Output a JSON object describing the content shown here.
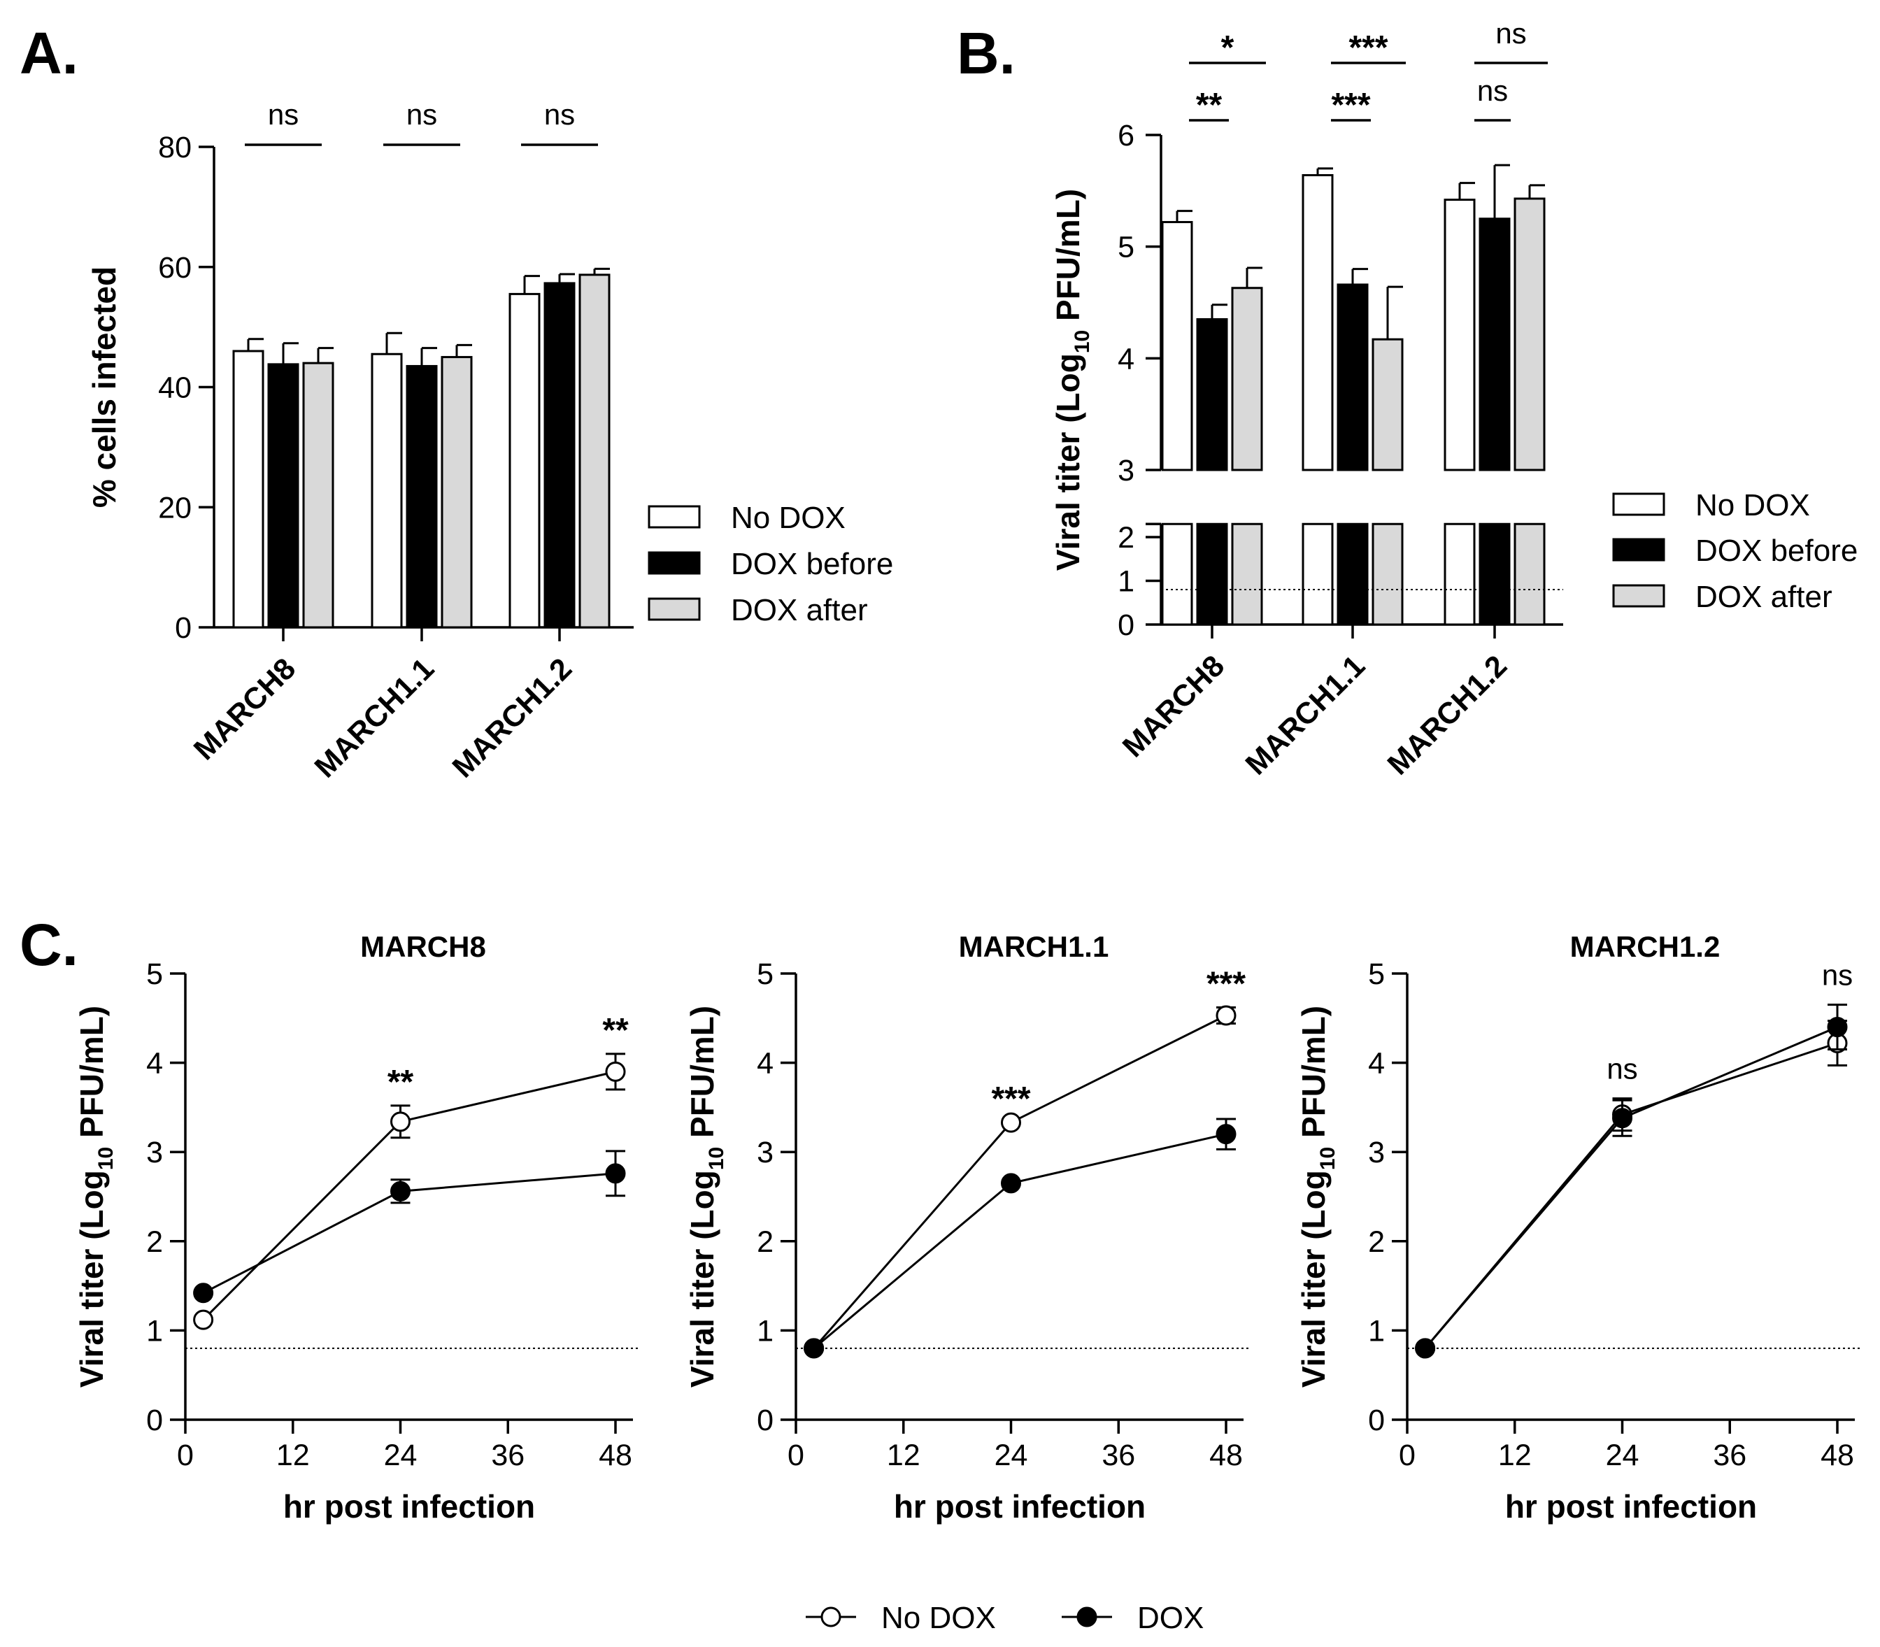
{
  "figure": {
    "panels": [
      {
        "id": "A",
        "letter": "A.",
        "chart_data": {
          "type": "bar",
          "categories": [
            "MARCH8",
            "MARCH1.1",
            "MARCH1.2"
          ],
          "series": [
            {
              "name": "No DOX",
              "values": [
                46,
                45.5,
                55.5
              ],
              "errors": [
                2,
                3.5,
                3
              ],
              "color": "#ffffff"
            },
            {
              "name": "DOX before",
              "values": [
                43.8,
                43.5,
                57.3
              ],
              "errors": [
                3.5,
                3,
                1.5
              ],
              "color": "#000000"
            },
            {
              "name": "DOX after",
              "values": [
                44,
                45,
                58.7
              ],
              "errors": [
                2.5,
                2,
                1
              ],
              "color": "#d9d9d9"
            }
          ],
          "ylabel": "% cells infected",
          "ylim": [
            0,
            80
          ],
          "yticks": [
            0,
            20,
            40,
            60,
            80
          ],
          "significance": [
            {
              "category": "MARCH8",
              "label": "ns"
            },
            {
              "category": "MARCH1.1",
              "label": "ns"
            },
            {
              "category": "MARCH1.2",
              "label": "ns"
            }
          ],
          "legend": "right"
        }
      },
      {
        "id": "B",
        "letter": "B.",
        "chart_data": {
          "type": "bar",
          "categories": [
            "MARCH8",
            "MARCH1.1",
            "MARCH1.2"
          ],
          "series": [
            {
              "name": "No DOX",
              "values": [
                5.22,
                5.64,
                5.42
              ],
              "errors": [
                0.1,
                0.06,
                0.15
              ],
              "color": "#ffffff"
            },
            {
              "name": "DOX before",
              "values": [
                4.35,
                4.66,
                5.25
              ],
              "errors": [
                0.13,
                0.14,
                0.48
              ],
              "color": "#000000"
            },
            {
              "name": "DOX after",
              "values": [
                4.63,
                4.17,
                5.43
              ],
              "errors": [
                0.18,
                0.47,
                0.12
              ],
              "color": "#d9d9d9"
            }
          ],
          "ylabel_main": "Viral titer (Log",
          "ylabel_sub": "10",
          "ylabel_end": " PFU/mL)",
          "ylim": [
            0,
            6
          ],
          "axis_break": [
            2.3,
            3
          ],
          "yticks": [
            0,
            1,
            2,
            3,
            4,
            5,
            6
          ],
          "detection_limit": 0.8,
          "significance": [
            {
              "category": "MARCH8",
              "comparison": "No DOX vs DOX before",
              "label": "**"
            },
            {
              "category": "MARCH8",
              "comparison": "No DOX vs DOX after",
              "label": "*"
            },
            {
              "category": "MARCH1.1",
              "comparison": "No DOX vs DOX before",
              "label": "***"
            },
            {
              "category": "MARCH1.1",
              "comparison": "No DOX vs DOX after",
              "label": "***"
            },
            {
              "category": "MARCH1.2",
              "comparison": "No DOX vs DOX before",
              "label": "ns"
            },
            {
              "category": "MARCH1.2",
              "comparison": "No DOX vs DOX after",
              "label": "ns"
            }
          ],
          "legend": "right"
        }
      },
      {
        "id": "C",
        "letter": "C.",
        "chart_data": [
          {
            "type": "line",
            "title": "MARCH8",
            "x": [
              2,
              24,
              48
            ],
            "series": [
              {
                "name": "No DOX",
                "values": [
                  1.12,
                  3.34,
                  3.9
                ],
                "errors": [
                  0,
                  0.18,
                  0.2
                ],
                "marker": "open-circle"
              },
              {
                "name": "DOX",
                "values": [
                  1.42,
                  2.56,
                  2.76
                ],
                "errors": [
                  0,
                  0.13,
                  0.25
                ],
                "marker": "filled-circle"
              }
            ],
            "xlabel": "hr post infection",
            "ylabel_main": "Viral titer (Log",
            "ylabel_sub": "10",
            "ylabel_end": " PFU/mL)",
            "xlim": [
              0,
              48
            ],
            "xticks": [
              0,
              12,
              24,
              36,
              48
            ],
            "ylim": [
              0,
              5
            ],
            "yticks": [
              0,
              1,
              2,
              3,
              4,
              5
            ],
            "detection_limit": 0.8,
            "significance": [
              {
                "x": 24,
                "label": "**"
              },
              {
                "x": 48,
                "label": "**"
              }
            ]
          },
          {
            "type": "line",
            "title": "MARCH1.1",
            "x": [
              2,
              24,
              48
            ],
            "series": [
              {
                "name": "No DOX",
                "values": [
                  0.8,
                  3.33,
                  4.53
                ],
                "errors": [
                  0,
                  0,
                  0.09
                ],
                "marker": "open-circle"
              },
              {
                "name": "DOX",
                "values": [
                  0.8,
                  2.65,
                  3.2
                ],
                "errors": [
                  0,
                  0,
                  0.17
                ],
                "marker": "filled-circle"
              }
            ],
            "xlabel": "hr post infection",
            "ylabel_main": "Viral titer (Log",
            "ylabel_sub": "10",
            "ylabel_end": " PFU/mL)",
            "xlim": [
              0,
              48
            ],
            "xticks": [
              0,
              12,
              24,
              36,
              48
            ],
            "ylim": [
              0,
              5
            ],
            "yticks": [
              0,
              1,
              2,
              3,
              4,
              5
            ],
            "detection_limit": 0.8,
            "significance": [
              {
                "x": 24,
                "label": "***"
              },
              {
                "x": 48,
                "label": "***"
              }
            ]
          },
          {
            "type": "line",
            "title": "MARCH1.2",
            "x": [
              2,
              24,
              48
            ],
            "series": [
              {
                "name": "No DOX",
                "values": [
                  0.8,
                  3.42,
                  4.22
                ],
                "errors": [
                  0,
                  0.18,
                  0.25
                ],
                "marker": "open-circle"
              },
              {
                "name": "DOX",
                "values": [
                  0.8,
                  3.38,
                  4.4
                ],
                "errors": [
                  0,
                  0.2,
                  0.25
                ],
                "marker": "filled-circle"
              }
            ],
            "xlabel": "hr post infection",
            "ylabel_main": "Viral titer (Log",
            "ylabel_sub": "10",
            "ylabel_end": " PFU/mL)",
            "xlim": [
              0,
              48
            ],
            "xticks": [
              0,
              12,
              24,
              36,
              48
            ],
            "ylim": [
              0,
              5
            ],
            "yticks": [
              0,
              1,
              2,
              3,
              4,
              5
            ],
            "detection_limit": 0.8,
            "significance": [
              {
                "x": 24,
                "label": "ns"
              },
              {
                "x": 48,
                "label": "ns"
              }
            ]
          }
        ],
        "legend": {
          "position": "bottom",
          "entries": [
            {
              "name": "No DOX",
              "marker": "open-circle"
            },
            {
              "name": "DOX",
              "marker": "filled-circle"
            }
          ]
        }
      }
    ]
  }
}
